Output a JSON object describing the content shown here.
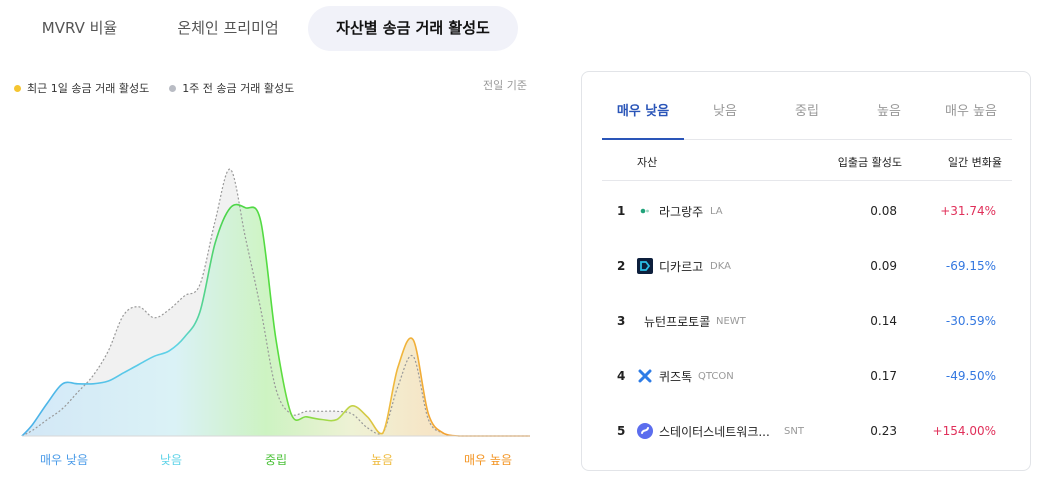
{
  "top_tabs": [
    "MVRV 비율",
    "온체인 프리미엄",
    "자산별 송금 거래 활성도"
  ],
  "legend": {
    "recent": "최근 1일 송금 거래 활성도",
    "week": "1주 전 송금 거래 활성도",
    "recent_color": "#f5c531",
    "week_color": "#b9bcc4"
  },
  "basis": "전일 기준",
  "chart_data": {
    "type": "area",
    "categories": [
      "매우 낮음",
      "낮음",
      "중립",
      "높음",
      "매우 높음"
    ],
    "category_colors": [
      "#4a9be8",
      "#5fd3e8",
      "#4cc23a",
      "#efbb3f",
      "#f39422"
    ],
    "x": [
      0,
      0.02,
      0.05,
      0.08,
      0.11,
      0.14,
      0.17,
      0.2,
      0.23,
      0.26,
      0.29,
      0.32,
      0.35,
      0.38,
      0.41,
      0.44,
      0.47,
      0.5,
      0.53,
      0.56,
      0.59,
      0.62,
      0.65,
      0.68,
      0.71,
      0.74,
      0.77,
      0.8,
      0.83,
      0.86,
      0.89,
      0.92,
      0.95,
      0.98,
      1.0
    ],
    "series": [
      {
        "name": "최근 1일 송금 거래 활성도",
        "values": [
          0,
          0.04,
          0.12,
          0.19,
          0.19,
          0.19,
          0.2,
          0.23,
          0.26,
          0.29,
          0.31,
          0.36,
          0.45,
          0.7,
          0.83,
          0.83,
          0.78,
          0.35,
          0.08,
          0.07,
          0.06,
          0.06,
          0.11,
          0.07,
          0.01,
          0.25,
          0.35,
          0.08,
          0.01,
          0,
          0,
          0,
          0,
          0,
          0
        ]
      },
      {
        "name": "1주 전 송금 거래 활성도",
        "values": [
          0,
          0.02,
          0.06,
          0.1,
          0.16,
          0.22,
          0.31,
          0.44,
          0.47,
          0.43,
          0.46,
          0.51,
          0.55,
          0.78,
          0.97,
          0.72,
          0.46,
          0.17,
          0.08,
          0.09,
          0.09,
          0.09,
          0.08,
          0.03,
          0.01,
          0.18,
          0.29,
          0.06,
          0.01,
          0,
          0,
          0,
          0,
          0,
          0
        ]
      }
    ],
    "xlim": [
      0,
      1
    ],
    "ylim": [
      0,
      1
    ],
    "grid": false,
    "legend_position": "top-left"
  },
  "panel": {
    "tabs": [
      "매우 낮음",
      "낮음",
      "중립",
      "높음",
      "매우 높음"
    ],
    "active_tab_color": "#2a55b8",
    "headers": {
      "asset": "자산",
      "activity": "입출금 활성도",
      "change": "일간 변화율"
    },
    "rows": [
      {
        "rank": "1",
        "name": "라그랑주",
        "symbol": "LA",
        "activity": "0.08",
        "change": "+31.74%",
        "icon": "lagrange-icon"
      },
      {
        "rank": "2",
        "name": "디카르고",
        "symbol": "DKA",
        "activity": "0.09",
        "change": "-69.15%",
        "icon": "dkargo-icon"
      },
      {
        "rank": "3",
        "name": "뉴턴프로토콜",
        "symbol": "NEWT",
        "activity": "0.14",
        "change": "-30.59%",
        "icon": "none"
      },
      {
        "rank": "4",
        "name": "퀴즈톡",
        "symbol": "QTCON",
        "activity": "0.17",
        "change": "-49.50%",
        "icon": "quiztok-icon"
      },
      {
        "rank": "5",
        "name": "스테이터스네트워크...",
        "symbol": "SNT",
        "activity": "0.23",
        "change": "+154.00%",
        "icon": "status-icon"
      }
    ],
    "positive_color": "#e0305a",
    "negative_color": "#3478e0"
  }
}
